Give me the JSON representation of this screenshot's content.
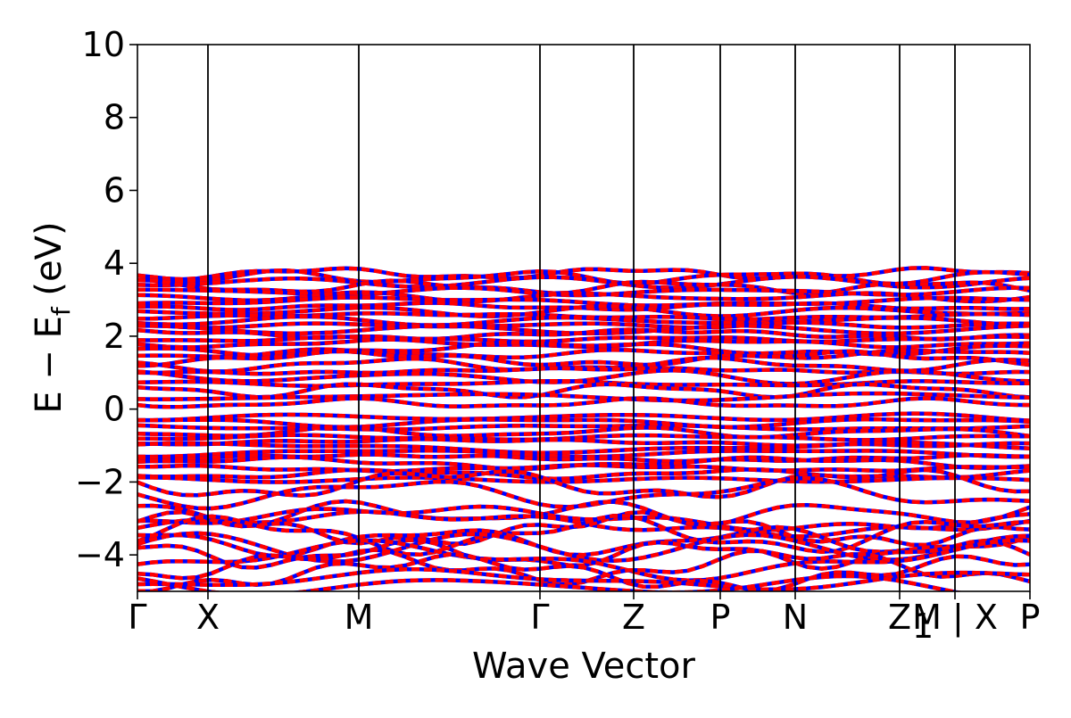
{
  "chart_data": {
    "type": "line",
    "title": "",
    "xlabel": "Wave Vector",
    "ylabel": {
      "prefix": "E − E",
      "subscript": "f",
      "suffix": " (eV)"
    },
    "ylim": [
      -5,
      10
    ],
    "yticks": [
      {
        "value": -4,
        "label": "−4"
      },
      {
        "value": -2,
        "label": "−2"
      },
      {
        "value": 0,
        "label": "0"
      },
      {
        "value": 2,
        "label": "2"
      },
      {
        "value": 4,
        "label": "4"
      },
      {
        "value": 6,
        "label": "6"
      },
      {
        "value": 8,
        "label": "8"
      },
      {
        "value": 10,
        "label": "10"
      }
    ],
    "xlim": [
      0,
      1
    ],
    "kpoints": [
      {
        "label": "Γ",
        "x": 0.0
      },
      {
        "label": "X",
        "x": 0.079
      },
      {
        "label": "M",
        "x": 0.248
      },
      {
        "label": "Γ",
        "x": 0.451
      },
      {
        "label": "Z",
        "x": 0.556
      },
      {
        "label": "P",
        "x": 0.653
      },
      {
        "label": "N",
        "x": 0.737
      },
      {
        "label": "Z",
        "x": 0.854
      },
      {
        "label": "M | X",
        "x": 0.916
      },
      {
        "label": "P",
        "x": 1.0
      }
    ],
    "kpoint_sub_label": {
      "after": "Z",
      "text": "1"
    },
    "grid": false,
    "legend": "none",
    "colors": {
      "band_primary": "#ff0000",
      "band_secondary": "#0000ff",
      "kpoint_line": "#000000"
    },
    "bands": {
      "upper_group": [
        3.72,
        3.62,
        3.48,
        3.35,
        3.22,
        3.08,
        2.95,
        2.82,
        2.68,
        2.55,
        2.42,
        2.3,
        2.18,
        2.05,
        1.92,
        1.8,
        1.66,
        1.52,
        1.38,
        1.22,
        1.05,
        0.88,
        0.7,
        0.52,
        0.34,
        0.16
      ],
      "middle_group": [
        -0.22,
        -0.36,
        -0.5,
        -0.64,
        -0.78,
        -0.92,
        -1.06,
        -1.2,
        -1.34,
        -1.48,
        -1.62,
        -1.78,
        -1.94
      ],
      "lower_group": [
        -2.05,
        -2.3,
        -2.85,
        -3.0,
        -3.15,
        -3.3,
        -3.45,
        -3.62,
        -3.8,
        -3.98,
        -4.15,
        -4.32,
        -4.5,
        -4.68,
        -4.85
      ]
    }
  }
}
